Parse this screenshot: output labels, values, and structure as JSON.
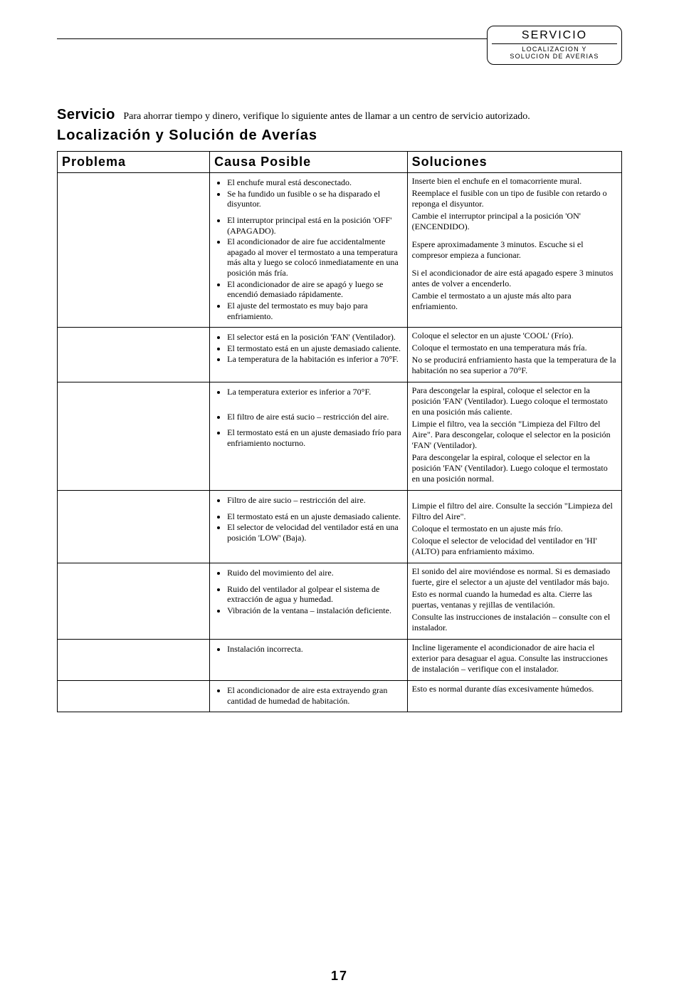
{
  "header_tab": {
    "title": "SERVICIO",
    "subtitle_line1": "LOCALIZACION Y",
    "subtitle_line2": "SOLUCION DE AVERIAS"
  },
  "intro": {
    "heading": "Servicio",
    "text": "Para ahorrar tiempo y dinero, verifique lo siguiente antes de llamar a un centro de servicio autorizado."
  },
  "section_title": "Localización y Solución de Averías",
  "table": {
    "headers": {
      "problem": "Problema",
      "cause": "Causa Posible",
      "solution": "Soluciones"
    },
    "rows": [
      {
        "causes": [
          {
            "text": "El enchufe mural está desconectado."
          },
          {
            "text": "Se ha fundido un fusible o se ha disparado el disyuntor."
          },
          {
            "text": "El interruptor principal está en la posición 'OFF' (APAGADO).",
            "spaced": "sm"
          },
          {
            "text": "El acondicionador de aire fue accidentalmente apagado al mover el termostato a una temperatura más alta y luego se colocó inmediatamente en una posición más fría."
          },
          {
            "text": "El acondicionador de aire se apagó y luego se encendió demasiado rápidamente."
          },
          {
            "text": "El ajuste del termostato es muy bajo para enfriamiento."
          }
        ],
        "solutions": [
          {
            "text": "Inserte bien el enchufe en el tomacorriente mural."
          },
          {
            "text": "Reemplace el fusible con un tipo de fusible con retardo o reponga el disyuntor."
          },
          {
            "text": "Cambie el interruptor principal a la posición 'ON' (ENCENDIDO)."
          },
          {
            "text": "Espere aproximadamente 3 minutos.  Escuche si el compresor empieza a funcionar.",
            "spaced": true
          },
          {
            "text": "Si el acondicionador de aire está apagado espere 3 minutos antes de volver a encenderlo.",
            "spaced": true
          },
          {
            "text": "Cambie el termostato a un ajuste más alto para enfriamiento."
          }
        ]
      },
      {
        "causes": [
          {
            "text": "El selector está en la posición 'FAN' (Ventilador)."
          },
          {
            "text": "El termostato está en un ajuste demasiado caliente."
          },
          {
            "text": "La temperatura de la habitación es inferior a 70°F."
          }
        ],
        "solutions": [
          {
            "text": "Coloque el selector en un ajuste 'COOL' (Frío)."
          },
          {
            "text": "Coloque el termostato en una temperatura más fría."
          },
          {
            "text": "No se producirá enfriamiento hasta que la temperatura de la habitación no sea superior a 70°F."
          }
        ]
      },
      {
        "causes": [
          {
            "text": "La temperatura exterior es inferior a 70°F."
          },
          {
            "text": "El filtro de aire está sucio – restricción del aire.",
            "spaced": true
          },
          {
            "text": "El termostato está en un ajuste demasiado frío para enfriamiento nocturno.",
            "spaced": "sm"
          }
        ],
        "solutions": [
          {
            "text": "Para descongelar la espiral, coloque el selector en la posición 'FAN' (Ventilador).  Luego coloque el termostato en una posición más caliente."
          },
          {
            "text": "Limpie el filtro, vea la sección \"Limpieza del Filtro del Aire\".  Para descongelar, coloque el selector en la posición 'FAN' (Ventilador)."
          },
          {
            "text": "Para descongelar la espiral, coloque el selector en la posición 'FAN' (Ventilador).  Luego coloque el termostato en una posición normal."
          }
        ]
      },
      {
        "causes": [
          {
            "text": "Filtro de aire sucio – restricción del aire."
          },
          {
            "text": "El termostato está en un ajuste demasiado caliente.",
            "spaced": "sm"
          },
          {
            "text": "El selector de velocidad del ventilador está en una posición 'LOW' (Baja)."
          }
        ],
        "solutions": [
          {
            "text": "Limpie el filtro del aire.  Consulte la sección \"Limpieza del Filtro del Aire\".",
            "spaced": true
          },
          {
            "text": "Coloque el termostato en un ajuste más frío."
          },
          {
            "text": "Coloque el selector de velocidad del ventilador en 'HI' (ALTO) para enfriamiento máximo."
          }
        ]
      },
      {
        "causes": [
          {
            "text": "Ruido del movimiento del aire."
          },
          {
            "text": "Ruido del ventilador al golpear el sistema de extracción de agua y humedad.",
            "spaced": "sm"
          },
          {
            "text": "Vibración de la ventana – instalación deficiente."
          }
        ],
        "solutions": [
          {
            "text": "El sonido del aire moviéndose es normal.  Si es demasiado fuerte, gire el selector a un ajuste del ventilador más bajo."
          },
          {
            "text": "Esto es normal cuando la humedad es alta.  Cierre las puertas, ventanas y rejillas de ventilación."
          },
          {
            "text": "Consulte las instrucciones de instalación – consulte con el instalador."
          }
        ]
      },
      {
        "causes": [
          {
            "text": "Instalación incorrecta."
          }
        ],
        "solutions": [
          {
            "text": "Incline ligeramente el acondicionador de aire hacia el exterior para desaguar el agua.  Consulte las instrucciones de instalación – verifique con el instalador."
          }
        ]
      },
      {
        "causes": [
          {
            "text": "El acondicionador de aire esta extrayendo gran cantidad de humedad de habitación."
          }
        ],
        "solutions": [
          {
            "text": "Esto es normal durante días excesivamente húmedos."
          }
        ]
      }
    ]
  },
  "page_number": "17"
}
